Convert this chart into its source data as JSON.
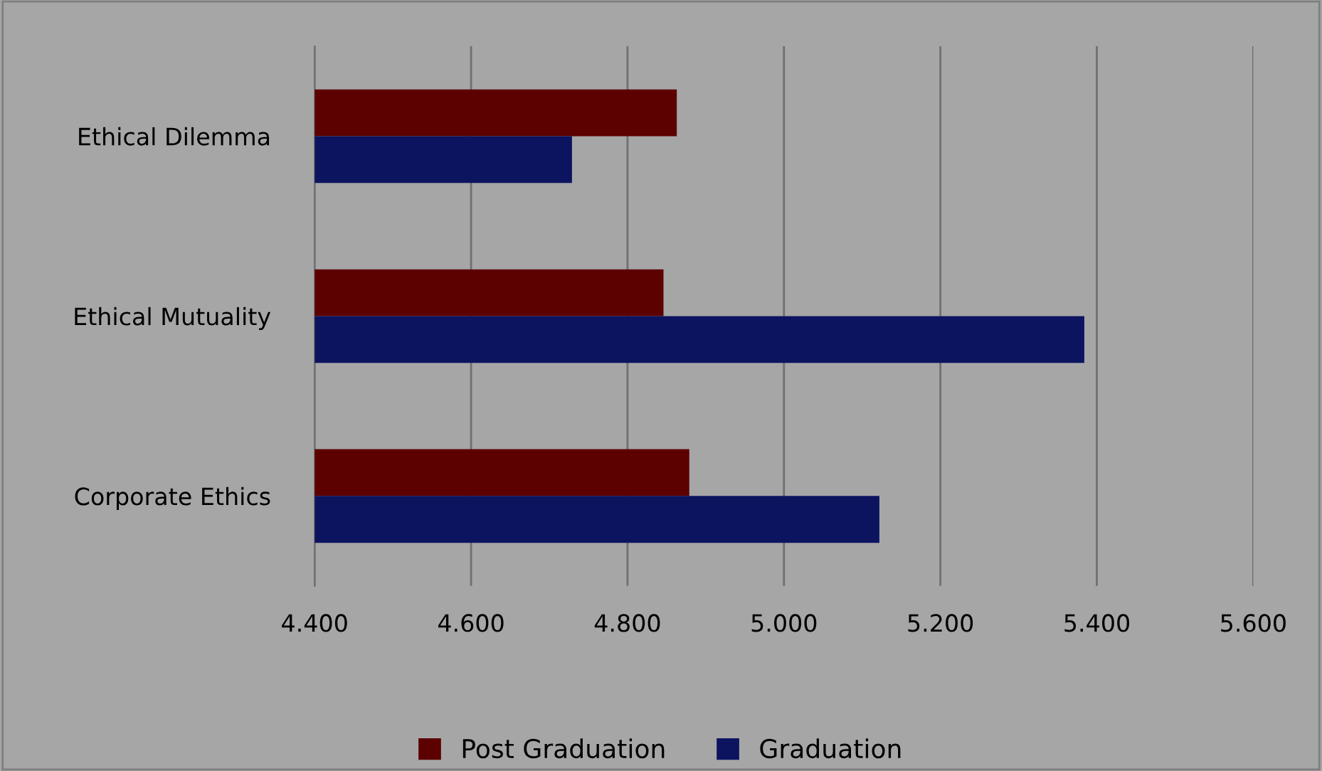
{
  "chart_data": {
    "type": "bar",
    "orientation": "horizontal",
    "categories": [
      "Ethical Dilemma",
      "Ethical Mutuality",
      "Corporate Ethics"
    ],
    "series": [
      {
        "name": "Post Graduation",
        "color": "#5c0000",
        "values": [
          4.863,
          4.846,
          4.879
        ]
      },
      {
        "name": "Graduation",
        "color": "#0c1460",
        "values": [
          4.729,
          5.384,
          5.122
        ]
      }
    ],
    "xlim": [
      4.4,
      5.6
    ],
    "xticks": [
      {
        "value": 4.4,
        "label": "4.400"
      },
      {
        "value": 4.6,
        "label": "4.600"
      },
      {
        "value": 4.8,
        "label": "4.800"
      },
      {
        "value": 5.0,
        "label": "5.000"
      },
      {
        "value": 5.2,
        "label": "5.200"
      },
      {
        "value": 5.4,
        "label": "5.400"
      },
      {
        "value": 5.6,
        "label": "5.600"
      }
    ],
    "grid": "x",
    "legend": "bottom"
  }
}
